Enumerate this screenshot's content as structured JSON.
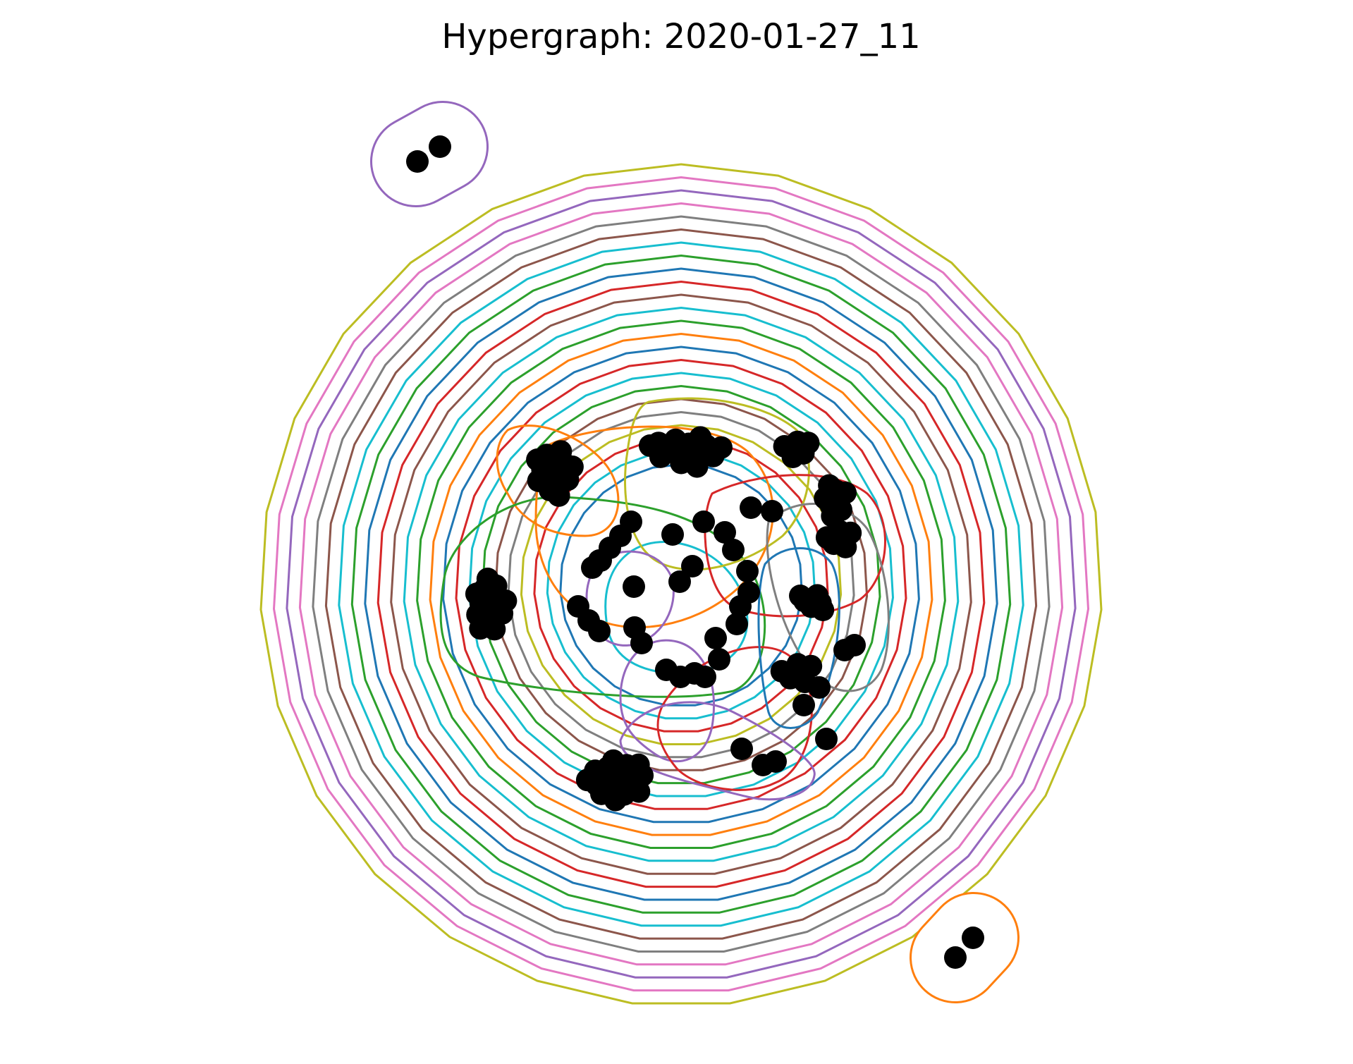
{
  "figure": {
    "title": "Hypergraph: 2020-01-27_11"
  },
  "palette": [
    "#1f77b4",
    "#ff7f0e",
    "#2ca02c",
    "#d62728",
    "#9467bd",
    "#8c564b",
    "#e377c2",
    "#7f7f7f",
    "#bcbd22",
    "#17becf"
  ],
  "node_color": "#000000"
}
